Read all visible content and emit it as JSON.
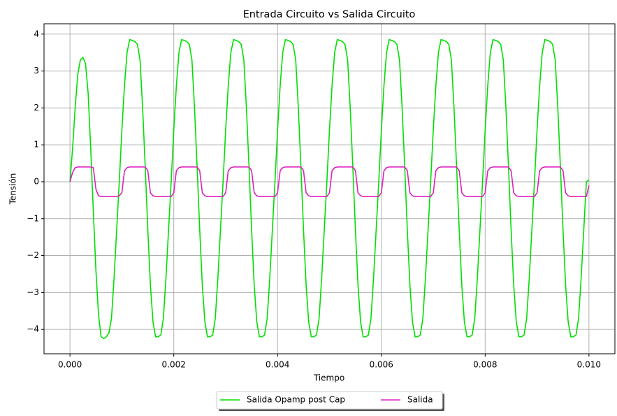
{
  "chart_data": {
    "type": "line",
    "title": "Entrada Circuito vs Salida Circuito",
    "x_label": "Tiempo",
    "y_label": "Tensión",
    "xlim": [
      -0.0005,
      0.0105
    ],
    "ylim": [
      -4.66,
      4.28
    ],
    "xticks": [
      {
        "value": 0,
        "label": "0.000"
      },
      {
        "value": 0.002,
        "label": "0.002"
      },
      {
        "value": 0.004,
        "label": "0.004"
      },
      {
        "value": 0.006,
        "label": "0.006"
      },
      {
        "value": 0.008,
        "label": "0.008"
      },
      {
        "value": 0.01,
        "label": "0.010"
      }
    ],
    "yticks": [
      {
        "value": -4,
        "label": "−4"
      },
      {
        "value": -3,
        "label": "−3"
      },
      {
        "value": -2,
        "label": "−2"
      },
      {
        "value": -1,
        "label": "−1"
      },
      0,
      1,
      2,
      3,
      4
    ],
    "grid": true,
    "legend": "lower center outside",
    "x": [
      0,
      5e-05,
      0.0001,
      0.00015,
      0.0002,
      0.00025,
      0.0003,
      0.00035,
      0.0004,
      0.00045,
      0.0005,
      0.00055,
      0.0006,
      0.00065,
      0.0007,
      0.00075,
      0.0008,
      0.00085,
      0.0009,
      0.00095,
      0.001,
      0.00105,
      0.0011,
      0.00115,
      0.0012,
      0.00125,
      0.0013,
      0.00135,
      0.0014,
      0.00145,
      0.0015,
      0.00155,
      0.0016,
      0.00165,
      0.0017,
      0.00175,
      0.0018,
      0.00185,
      0.0019,
      0.00195,
      0.002,
      0.00205,
      0.0021,
      0.00215,
      0.0022,
      0.00225,
      0.0023,
      0.00235,
      0.0024,
      0.00245,
      0.0025,
      0.00255,
      0.0026,
      0.00265,
      0.0027,
      0.00275,
      0.0028,
      0.00285,
      0.0029,
      0.00295,
      0.003,
      0.00305,
      0.0031,
      0.00315,
      0.0032,
      0.00325,
      0.0033,
      0.00335,
      0.0034,
      0.00345,
      0.0035,
      0.00355,
      0.0036,
      0.00365,
      0.0037,
      0.00375,
      0.0038,
      0.00385,
      0.0039,
      0.00395,
      0.004,
      0.00405,
      0.0041,
      0.00415,
      0.0042,
      0.00425,
      0.0043,
      0.00435,
      0.0044,
      0.00445,
      0.0045,
      0.00455,
      0.0046,
      0.00465,
      0.0047,
      0.00475,
      0.0048,
      0.00485,
      0.0049,
      0.00495,
      0.005,
      0.00505,
      0.0051,
      0.00515,
      0.0052,
      0.00525,
      0.0053,
      0.00535,
      0.0054,
      0.00545,
      0.0055,
      0.00555,
      0.0056,
      0.00565,
      0.0057,
      0.00575,
      0.0058,
      0.00585,
      0.0059,
      0.00595,
      0.006,
      0.00605,
      0.0061,
      0.00615,
      0.0062,
      0.00625,
      0.0063,
      0.00635,
      0.0064,
      0.00645,
      0.0065,
      0.00655,
      0.0066,
      0.00665,
      0.0067,
      0.00675,
      0.0068,
      0.00685,
      0.0069,
      0.00695,
      0.007,
      0.00705,
      0.0071,
      0.00715,
      0.0072,
      0.00725,
      0.0073,
      0.00735,
      0.0074,
      0.00745,
      0.0075,
      0.00755,
      0.0076,
      0.00765,
      0.0077,
      0.00775,
      0.0078,
      0.00785,
      0.0079,
      0.00795,
      0.008,
      0.00805,
      0.0081,
      0.00815,
      0.0082,
      0.00825,
      0.0083,
      0.00835,
      0.0084,
      0.00845,
      0.0085,
      0.00855,
      0.0086,
      0.00865,
      0.0087,
      0.00875,
      0.0088,
      0.00885,
      0.0089,
      0.00895,
      0.009,
      0.00905,
      0.0091,
      0.00915,
      0.0092,
      0.00925,
      0.0093,
      0.00935,
      0.0094,
      0.00945,
      0.0095,
      0.00955,
      0.0096,
      0.00965,
      0.0097,
      0.00975,
      0.0098,
      0.00985,
      0.0099,
      0.00995,
      0.01
    ],
    "series": [
      {
        "name": "Salida Opamp post Cap",
        "color": "#00e000",
        "values": [
          0,
          0.9,
          2.0,
          2.9,
          3.3,
          3.37,
          3.2,
          2.4,
          0.9,
          -0.8,
          -2.4,
          -3.6,
          -4.2,
          -4.25,
          -4.2,
          -4.1,
          -3.7,
          -2.6,
          -1.3,
          0.0,
          1.4,
          2.6,
          3.5,
          3.85,
          3.83,
          3.8,
          3.72,
          3.3,
          2.0,
          0.4,
          -1.3,
          -2.8,
          -3.8,
          -4.2,
          -4.2,
          -4.15,
          -3.7,
          -2.6,
          -1.3,
          0.0,
          1.4,
          2.6,
          3.5,
          3.85,
          3.83,
          3.8,
          3.72,
          3.3,
          2.0,
          0.4,
          -1.3,
          -2.8,
          -3.8,
          -4.2,
          -4.2,
          -4.15,
          -3.7,
          -2.6,
          -1.3,
          0.0,
          1.4,
          2.6,
          3.5,
          3.85,
          3.83,
          3.8,
          3.72,
          3.3,
          2.0,
          0.4,
          -1.3,
          -2.8,
          -3.8,
          -4.2,
          -4.2,
          -4.15,
          -3.7,
          -2.6,
          -1.3,
          0.0,
          1.4,
          2.6,
          3.5,
          3.85,
          3.83,
          3.8,
          3.72,
          3.3,
          2.0,
          0.4,
          -1.3,
          -2.8,
          -3.8,
          -4.2,
          -4.2,
          -4.15,
          -3.7,
          -2.6,
          -1.3,
          0.0,
          1.4,
          2.6,
          3.5,
          3.85,
          3.83,
          3.8,
          3.72,
          3.3,
          2.0,
          0.4,
          -1.3,
          -2.8,
          -3.8,
          -4.2,
          -4.2,
          -4.15,
          -3.7,
          -2.6,
          -1.3,
          0.0,
          1.4,
          2.6,
          3.5,
          3.85,
          3.83,
          3.8,
          3.72,
          3.3,
          2.0,
          0.4,
          -1.3,
          -2.8,
          -3.8,
          -4.2,
          -4.2,
          -4.15,
          -3.7,
          -2.6,
          -1.3,
          0.0,
          1.4,
          2.6,
          3.5,
          3.85,
          3.83,
          3.8,
          3.72,
          3.3,
          2.0,
          0.4,
          -1.3,
          -2.8,
          -3.8,
          -4.2,
          -4.2,
          -4.15,
          -3.7,
          -2.6,
          -1.3,
          0.0,
          1.4,
          2.6,
          3.5,
          3.85,
          3.83,
          3.8,
          3.72,
          3.3,
          2.0,
          0.4,
          -1.3,
          -2.8,
          -3.8,
          -4.2,
          -4.2,
          -4.15,
          -3.7,
          -2.6,
          -1.3,
          0.0,
          1.4,
          2.6,
          3.5,
          3.85,
          3.83,
          3.8,
          3.72,
          3.3,
          2.0,
          0.4,
          -1.3,
          -2.8,
          -3.8,
          -4.2,
          -4.2,
          -4.15,
          -3.7,
          -2.6,
          -1.3,
          0.0,
          0.05
        ]
      },
      {
        "name": "Salida",
        "color": "#e020c0",
        "values": [
          0,
          0.25,
          0.38,
          0.4,
          0.4,
          0.4,
          0.4,
          0.4,
          0.4,
          0.38,
          -0.2,
          -0.38,
          -0.4,
          -0.4,
          -0.4,
          -0.4,
          -0.4,
          -0.4,
          -0.4,
          -0.38,
          -0.3,
          0.3,
          0.38,
          0.4,
          0.4,
          0.4,
          0.4,
          0.4,
          0.4,
          0.4,
          0.3,
          -0.3,
          -0.38,
          -0.4,
          -0.4,
          -0.4,
          -0.4,
          -0.4,
          -0.4,
          -0.4,
          -0.3,
          0.3,
          0.38,
          0.4,
          0.4,
          0.4,
          0.4,
          0.4,
          0.4,
          0.4,
          0.3,
          -0.3,
          -0.38,
          -0.4,
          -0.4,
          -0.4,
          -0.4,
          -0.4,
          -0.4,
          -0.4,
          -0.3,
          0.3,
          0.38,
          0.4,
          0.4,
          0.4,
          0.4,
          0.4,
          0.4,
          0.4,
          0.3,
          -0.3,
          -0.38,
          -0.4,
          -0.4,
          -0.4,
          -0.4,
          -0.4,
          -0.4,
          -0.4,
          -0.3,
          0.3,
          0.38,
          0.4,
          0.4,
          0.4,
          0.4,
          0.4,
          0.4,
          0.4,
          0.3,
          -0.3,
          -0.38,
          -0.4,
          -0.4,
          -0.4,
          -0.4,
          -0.4,
          -0.4,
          -0.4,
          -0.3,
          0.3,
          0.38,
          0.4,
          0.4,
          0.4,
          0.4,
          0.4,
          0.4,
          0.4,
          0.3,
          -0.3,
          -0.38,
          -0.4,
          -0.4,
          -0.4,
          -0.4,
          -0.4,
          -0.4,
          -0.4,
          -0.3,
          0.3,
          0.38,
          0.4,
          0.4,
          0.4,
          0.4,
          0.4,
          0.4,
          0.4,
          0.3,
          -0.3,
          -0.38,
          -0.4,
          -0.4,
          -0.4,
          -0.4,
          -0.4,
          -0.4,
          -0.4,
          -0.3,
          0.3,
          0.38,
          0.4,
          0.4,
          0.4,
          0.4,
          0.4,
          0.4,
          0.4,
          0.3,
          -0.3,
          -0.38,
          -0.4,
          -0.4,
          -0.4,
          -0.4,
          -0.4,
          -0.4,
          -0.4,
          -0.3,
          0.3,
          0.38,
          0.4,
          0.4,
          0.4,
          0.4,
          0.4,
          0.4,
          0.4,
          0.3,
          -0.3,
          -0.38,
          -0.4,
          -0.4,
          -0.4,
          -0.4,
          -0.4,
          -0.4,
          -0.4,
          -0.3,
          0.3,
          0.38,
          0.4,
          0.4,
          0.4,
          0.4,
          0.4,
          0.4,
          0.4,
          0.3,
          -0.3,
          -0.38,
          -0.4,
          -0.4,
          -0.4,
          -0.4,
          -0.4,
          -0.4,
          -0.4,
          -0.1
        ]
      }
    ]
  }
}
